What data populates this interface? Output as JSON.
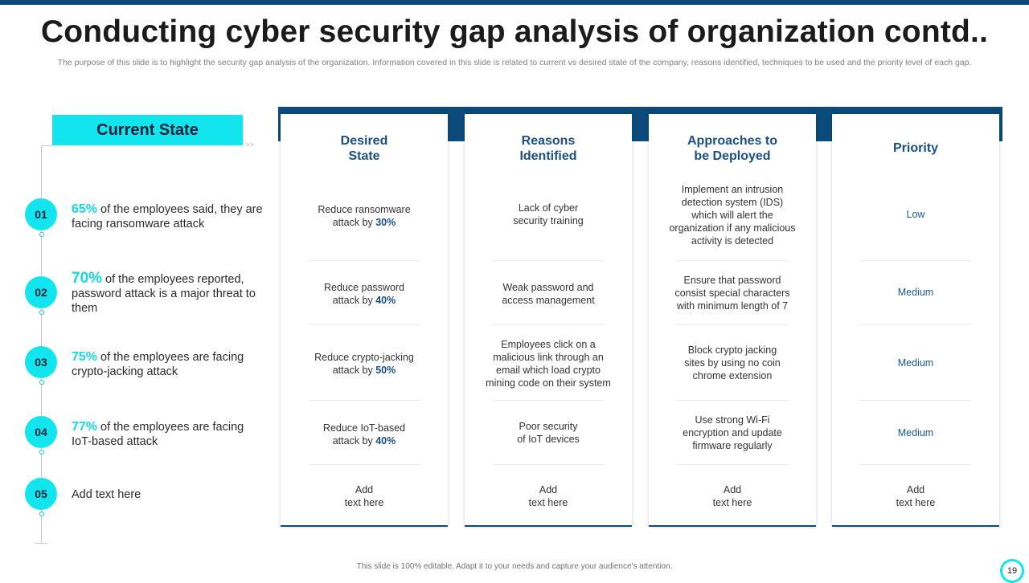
{
  "title": "Conducting cyber security gap analysis of organization contd..",
  "subtitle": "The purpose of this slide is to highlight the security gap analysis of the organization. Information covered in this slide is related to current vs  desired state of the company, reasons identified, techniques to be used and the priority level of each gap.",
  "current_state": {
    "label": "Current State",
    "items": [
      {
        "num": "01",
        "pct": "65%",
        "text": " of the employees said, they are facing ransomware attack"
      },
      {
        "num": "02",
        "pct": "70%",
        "text": " of the employees reported, password attack is a major threat to them"
      },
      {
        "num": "03",
        "pct": "75%",
        "text": " of the employees are facing crypto-jacking attack"
      },
      {
        "num": "04",
        "pct": "77%",
        "text": " of the employees are facing IoT-based attack"
      },
      {
        "num": "05",
        "pct": "",
        "text": "Add text here"
      }
    ]
  },
  "columns": [
    {
      "header": [
        "Desired",
        "State"
      ],
      "cells": [
        {
          "pre": [
            "Reduce ransomware",
            "attack by "
          ],
          "bold": "30%"
        },
        {
          "pre": [
            "Reduce password",
            "attack  by "
          ],
          "bold": "40%"
        },
        {
          "pre": [
            "Reduce crypto-jacking",
            "attack by "
          ],
          "bold": "50%"
        },
        {
          "pre": [
            "Reduce IoT-based",
            "attack by "
          ],
          "bold": "40%"
        },
        {
          "pre": [
            "Add",
            "text here"
          ],
          "bold": ""
        }
      ]
    },
    {
      "header": [
        "Reasons",
        "Identified"
      ],
      "cells": [
        {
          "lines": [
            "Lack of cyber",
            "security training"
          ]
        },
        {
          "lines": [
            "Weak password and",
            "access management"
          ]
        },
        {
          "lines": [
            "Employees click on a",
            "malicious link through an",
            "email which load crypto",
            "mining code on their system"
          ]
        },
        {
          "lines": [
            "Poor security",
            "of IoT devices"
          ]
        },
        {
          "lines": [
            "Add",
            "text here"
          ]
        }
      ]
    },
    {
      "header": [
        "Approaches to",
        "be Deployed"
      ],
      "cells": [
        {
          "lines": [
            "Implement  an intrusion",
            "detection system (IDS)",
            "which will alert the",
            "organization  if any malicious",
            "activity is detected"
          ]
        },
        {
          "lines": [
            "Ensure that password",
            "consist special characters",
            "with minimum length of 7"
          ]
        },
        {
          "lines": [
            "Block crypto jacking",
            "sites by using no coin",
            "chrome extension"
          ]
        },
        {
          "lines": [
            "Use strong Wi-Fi",
            "encryption and update",
            "firmware  regularly"
          ]
        },
        {
          "lines": [
            "Add",
            "text here"
          ]
        }
      ]
    },
    {
      "header": [
        "Priority"
      ],
      "cells": [
        {
          "lines": [
            "Low"
          ]
        },
        {
          "lines": [
            "Medium"
          ]
        },
        {
          "lines": [
            "Medium"
          ]
        },
        {
          "lines": [
            "Medium"
          ]
        },
        {
          "lines": [
            "Add",
            "text here"
          ]
        }
      ]
    }
  ],
  "footer": "This slide is 100% editable.  Adapt it to your needs and capture your audience's attention.",
  "page_number": "19",
  "colors": {
    "accent": "#13e5ef",
    "navy": "#0b4a7a",
    "header_text": "#1a4f86"
  }
}
